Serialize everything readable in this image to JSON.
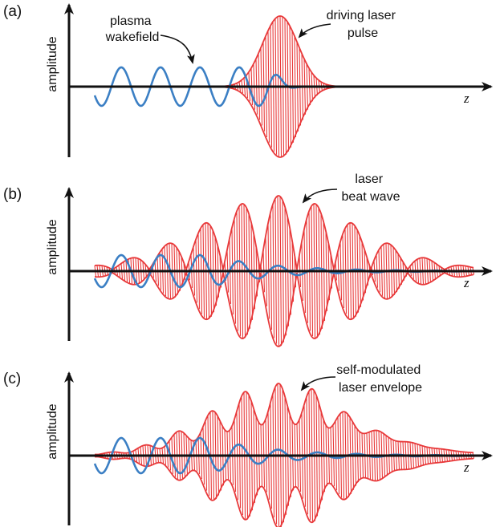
{
  "panels": [
    {
      "label": "(a)",
      "ylabel": "amplitude",
      "xlabel": "z",
      "annotations": [
        {
          "lines": [
            "plasma",
            "wakefield"
          ]
        },
        {
          "lines": [
            "driving laser",
            "pulse"
          ]
        }
      ],
      "envelope": "single",
      "wake_start": 0.0
    },
    {
      "label": "(b)",
      "ylabel": "amplitude",
      "xlabel": "z",
      "annotations": [
        {
          "lines": [
            "laser",
            "beat wave"
          ]
        }
      ],
      "envelope": "beat",
      "wake_start": 0.0
    },
    {
      "label": "(c)",
      "ylabel": "amplitude",
      "xlabel": "z",
      "annotations": [
        {
          "lines": [
            "self-modulated",
            "laser envelope"
          ]
        }
      ],
      "envelope": "selfmod",
      "wake_start": 0.0
    }
  ],
  "colors": {
    "laser": "#e8393a",
    "wakefield": "#3b7fc4",
    "axis": "#111111"
  },
  "icons": [
    "curved-arrow-icon"
  ]
}
